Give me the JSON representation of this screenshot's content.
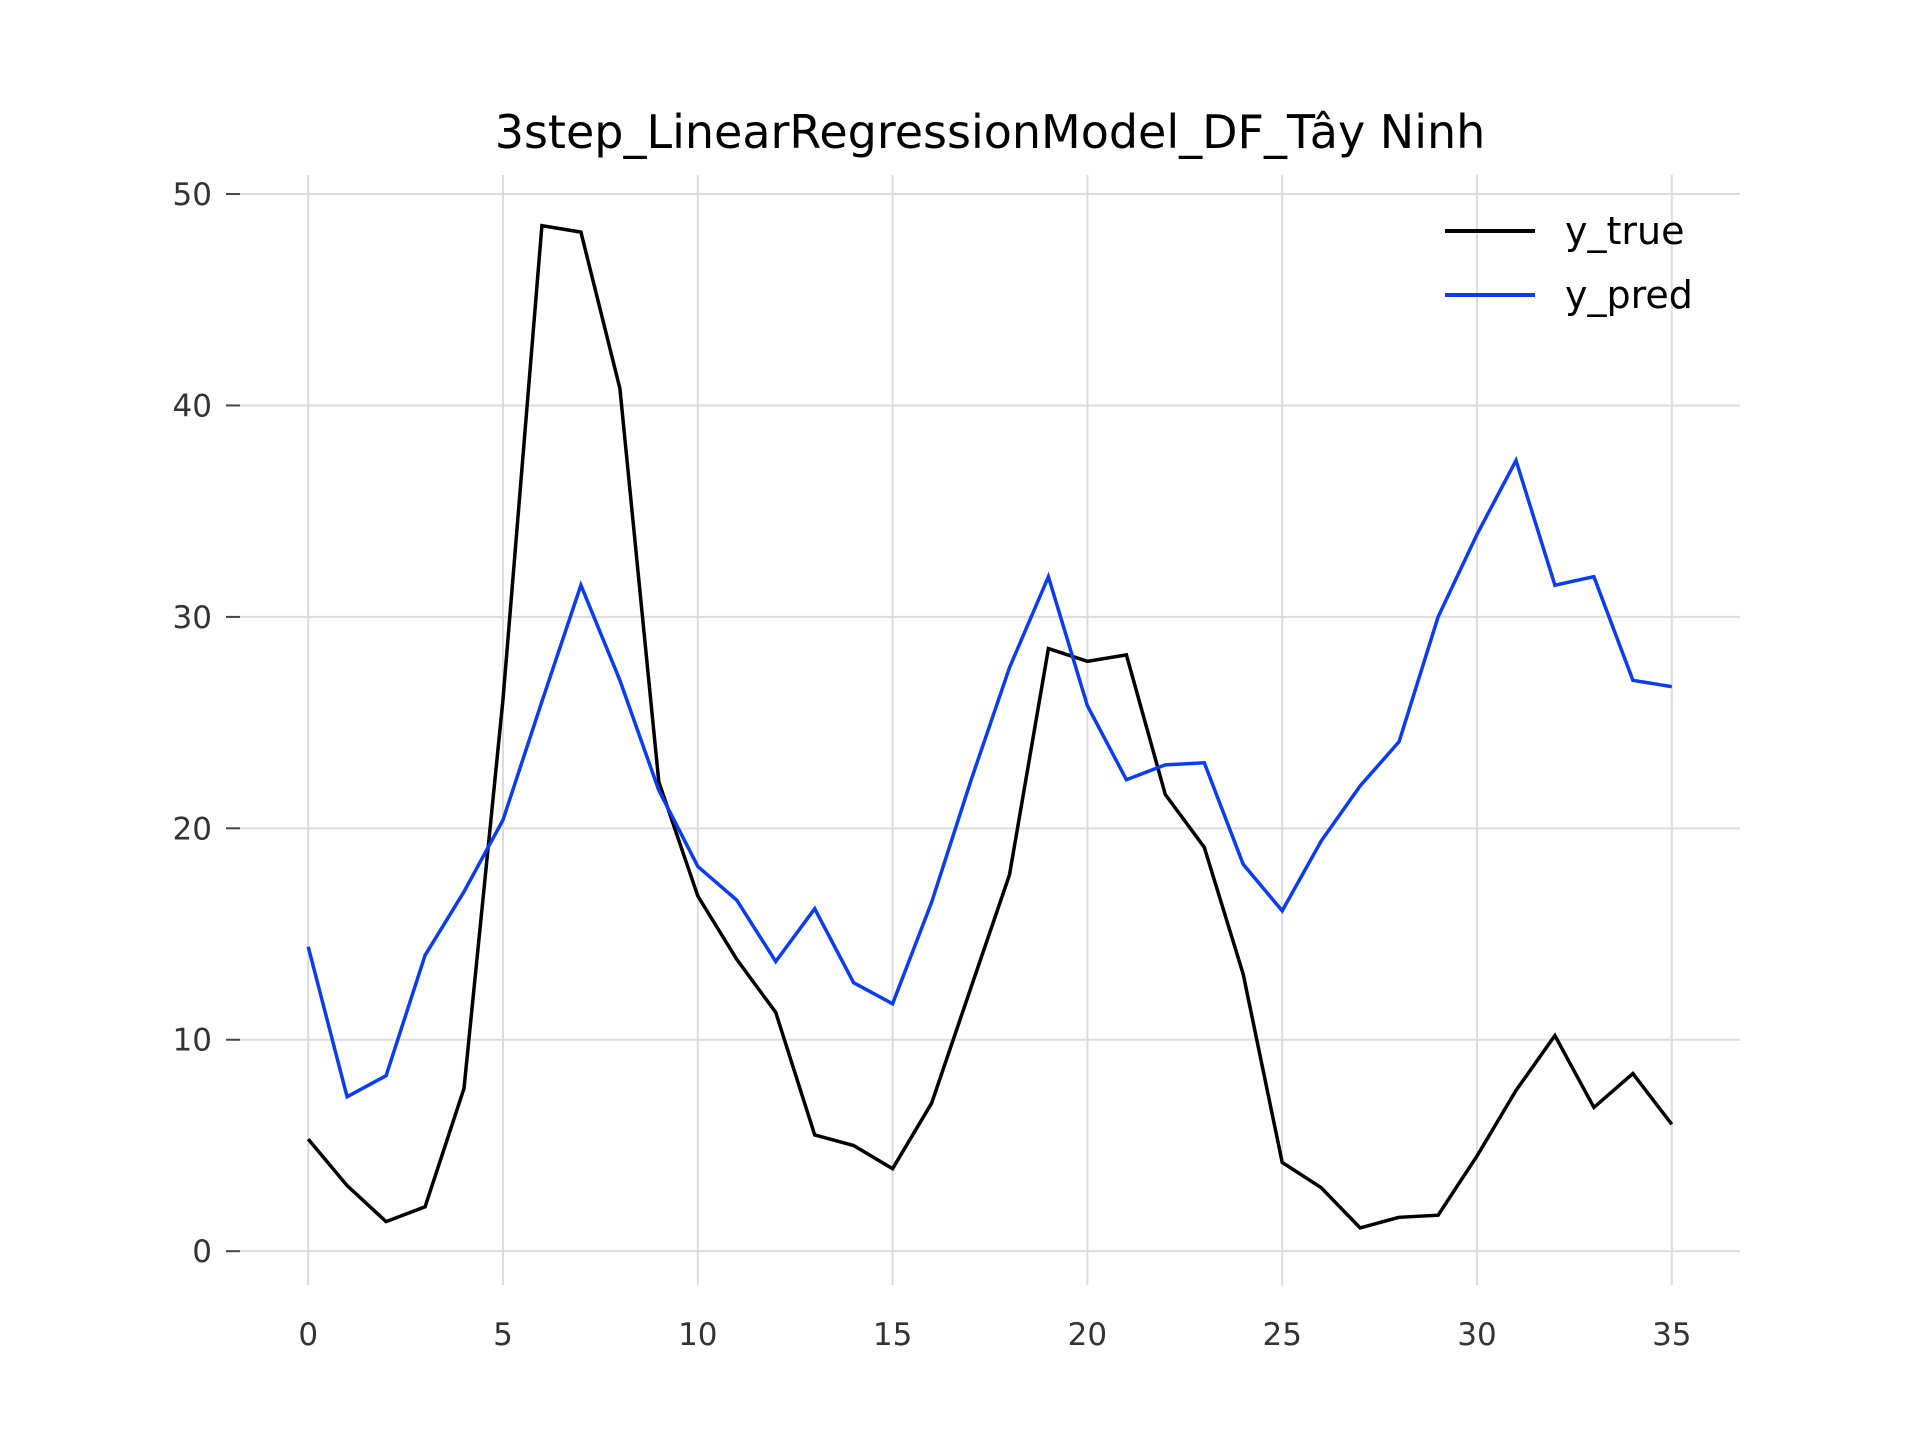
{
  "chart_data": {
    "type": "line",
    "title": "3step_LinearRegressionModel_DF_Tây Ninh",
    "xlabel": "",
    "ylabel": "",
    "xlim": [
      -1.75,
      36.75
    ],
    "ylim": [
      -1.6,
      50.9
    ],
    "grid": true,
    "legend_position": "top-right",
    "x_ticks": [
      0,
      5,
      10,
      15,
      20,
      25,
      30,
      35
    ],
    "y_ticks": [
      0,
      10,
      20,
      30,
      40,
      50
    ],
    "x": [
      0,
      1,
      2,
      3,
      4,
      5,
      6,
      7,
      8,
      9,
      10,
      11,
      12,
      13,
      14,
      15,
      16,
      17,
      18,
      19,
      20,
      21,
      22,
      23,
      24,
      25,
      26,
      27,
      28,
      29,
      30,
      31,
      32,
      33,
      34,
      35
    ],
    "series": [
      {
        "name": "y_true",
        "color": "#000000",
        "values": [
          5.3,
          3.1,
          1.4,
          2.1,
          7.7,
          26.1,
          48.5,
          48.2,
          40.8,
          22.2,
          16.8,
          13.8,
          11.3,
          5.5,
          5.0,
          3.9,
          7.0,
          12.4,
          17.8,
          28.5,
          27.9,
          28.2,
          21.6,
          19.1,
          13.1,
          4.2,
          3.0,
          1.1,
          1.6,
          1.7,
          4.5,
          7.6,
          10.2,
          6.8,
          8.4,
          6.0
        ]
      },
      {
        "name": "y_pred",
        "color": "#0a3cf0",
        "values": [
          14.4,
          7.3,
          8.3,
          14.0,
          17.0,
          20.4,
          26.0,
          31.5,
          27.0,
          21.8,
          18.2,
          16.6,
          13.7,
          16.2,
          12.7,
          11.7,
          16.5,
          22.2,
          27.6,
          31.9,
          25.8,
          22.3,
          23.0,
          23.1,
          18.3,
          16.1,
          19.4,
          22.0,
          24.1,
          30.0,
          33.9,
          37.4,
          31.5,
          31.9,
          27.0,
          26.7
        ]
      }
    ]
  }
}
